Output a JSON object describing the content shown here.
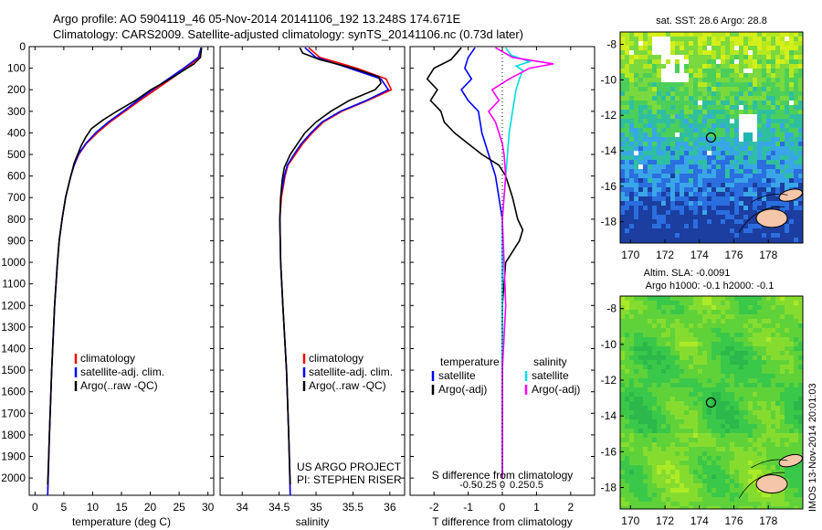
{
  "header": {
    "line1": "Argo profile: AO 5904119_46 05-Nov-2014 20141106_192 13.248S 174.671E",
    "line2": "Climatology: CARS2009. Satellite-adjusted climatology: synTS_20141106.nc (0.73d later)"
  },
  "side_stamp": "IMOS 13-Nov-2014 20:01:03",
  "chart_data": [
    {
      "id": "temperature",
      "type": "line",
      "xlabel": "temperature (deg C)",
      "ylabel": "depth",
      "xlim": [
        -1,
        31
      ],
      "ylim": [
        2080,
        0
      ],
      "xticks": [
        "0",
        "5",
        "10",
        "15",
        "20",
        "25",
        "30"
      ],
      "xtick_values": [
        0,
        5,
        10,
        15,
        20,
        25,
        30
      ],
      "yticks": [
        "0",
        "100",
        "200",
        "300",
        "400",
        "500",
        "600",
        "700",
        "800",
        "900",
        "1000",
        "1100",
        "1200",
        "1300",
        "1400",
        "1500",
        "1600",
        "1700",
        "1800",
        "1900",
        "2000"
      ],
      "ytick_values": [
        0,
        100,
        200,
        300,
        400,
        500,
        600,
        700,
        800,
        900,
        1000,
        1100,
        1200,
        1300,
        1400,
        1500,
        1600,
        1700,
        1800,
        1900,
        2000
      ],
      "legend": [
        "climatology",
        "satellite-adj. clim.",
        "Argo(..raw -QC)"
      ],
      "series": [
        {
          "name": "climatology",
          "color": "#ff0000",
          "depth": [
            5,
            50,
            100,
            150,
            200,
            250,
            300,
            350,
            400,
            450,
            500,
            550,
            600,
            700,
            800,
            900,
            1000,
            1200,
            1500,
            1800,
            2080
          ],
          "values": [
            28.8,
            28.5,
            26.2,
            23.6,
            20.9,
            18.2,
            15.6,
            13.0,
            10.8,
            8.9,
            7.6,
            6.8,
            6.2,
            5.3,
            4.7,
            4.2,
            3.9,
            3.4,
            2.9,
            2.5,
            2.2
          ]
        },
        {
          "name": "satellite-adj. clim.",
          "color": "#0000ff",
          "depth": [
            5,
            50,
            100,
            150,
            200,
            250,
            300,
            350,
            400,
            450,
            500,
            550,
            600,
            700,
            800,
            900,
            1000,
            1200,
            1500,
            1800,
            2080
          ],
          "values": [
            28.8,
            28.3,
            25.8,
            23.1,
            20.4,
            17.8,
            15.3,
            12.7,
            10.5,
            8.8,
            7.5,
            6.8,
            6.2,
            5.3,
            4.7,
            4.2,
            3.9,
            3.4,
            2.9,
            2.5,
            2.2
          ]
        },
        {
          "name": "Argo(..raw -QC)",
          "color": "#000000",
          "depth": [
            5,
            50,
            80,
            120,
            160,
            200,
            250,
            300,
            340,
            380,
            420,
            460,
            500,
            540,
            600,
            700,
            800,
            900,
            1000,
            1200,
            1500,
            1800,
            2030
          ],
          "values": [
            28.9,
            28.7,
            27.6,
            25.2,
            22.8,
            20.1,
            17.4,
            14.2,
            11.8,
            9.8,
            8.8,
            8.0,
            7.4,
            6.8,
            6.2,
            5.3,
            4.7,
            4.2,
            3.9,
            3.4,
            2.9,
            2.5,
            2.2
          ]
        }
      ]
    },
    {
      "id": "salinity",
      "type": "line",
      "xlabel": "salinity",
      "xlim": [
        33.7,
        36.2
      ],
      "ylim": [
        2080,
        0
      ],
      "xticks": [
        "34",
        "34.5",
        "35",
        "35.5",
        "36"
      ],
      "xtick_values": [
        34,
        34.5,
        35,
        35.5,
        36
      ],
      "legend": [
        "climatology",
        "satellite-adj. clim.",
        "Argo(..raw -QC)"
      ],
      "annotation": [
        "US ARGO PROJECT",
        "PI: STEPHEN RISER"
      ],
      "series": [
        {
          "name": "climatology",
          "color": "#ff0000",
          "depth": [
            5,
            50,
            100,
            150,
            200,
            250,
            300,
            350,
            400,
            450,
            500,
            550,
            600,
            700,
            800,
            1000,
            1200,
            1500,
            1800,
            2080
          ],
          "values": [
            34.9,
            35.05,
            35.55,
            35.95,
            36.02,
            35.7,
            35.35,
            35.1,
            34.95,
            34.82,
            34.72,
            34.62,
            34.58,
            34.53,
            34.51,
            34.52,
            34.55,
            34.6,
            34.63,
            34.65
          ]
        },
        {
          "name": "satellite-adj. clim.",
          "color": "#0000ff",
          "depth": [
            5,
            50,
            100,
            150,
            200,
            250,
            300,
            350,
            400,
            450,
            500,
            550,
            600,
            700,
            800,
            1000,
            1200,
            1500,
            1800,
            2080
          ],
          "values": [
            34.85,
            35.0,
            35.45,
            35.88,
            35.98,
            35.68,
            35.33,
            35.08,
            34.93,
            34.8,
            34.7,
            34.61,
            34.57,
            34.52,
            34.51,
            34.52,
            34.55,
            34.6,
            34.63,
            34.65
          ]
        },
        {
          "name": "Argo(..raw -QC)",
          "color": "#000000",
          "depth": [
            5,
            30,
            60,
            100,
            140,
            170,
            200,
            250,
            300,
            350,
            400,
            450,
            500,
            560,
            620,
            700,
            800,
            1000,
            1200,
            1500,
            1800,
            2030
          ],
          "values": [
            34.78,
            34.82,
            35.05,
            35.5,
            35.85,
            35.88,
            35.8,
            35.45,
            35.2,
            35.0,
            34.85,
            34.75,
            34.65,
            34.57,
            34.54,
            34.52,
            34.51,
            34.52,
            34.55,
            34.6,
            34.63,
            34.65
          ]
        }
      ]
    },
    {
      "id": "difference",
      "type": "line",
      "xlabel": "T difference from climatology",
      "xlabel_top": "S difference from climatology",
      "xlim": [
        -2.7,
        2.7
      ],
      "ylim": [
        2080,
        0
      ],
      "xticks": [
        "-2",
        "-1",
        "0",
        "1",
        "2"
      ],
      "xtick_values": [
        -2,
        -1,
        0,
        1,
        2
      ],
      "xticks_top": [
        "-0.5",
        "-0.25",
        "0",
        "0.25",
        "0.5"
      ],
      "xtick_top_values": [
        -0.5,
        -0.25,
        0,
        0.25,
        0.5
      ],
      "legend_left_title": "temperature",
      "legend_right_title": "salinity",
      "legend_left": [
        "satellite",
        "Argo(-adj)"
      ],
      "legend_right": [
        "satellite",
        "Argo(-adj)"
      ],
      "series": [
        {
          "name": "temperature satellite",
          "color": "#0000ff",
          "depth": [
            5,
            50,
            100,
            150,
            200,
            250,
            300,
            400,
            500,
            600,
            700,
            800,
            1000,
            1500,
            2000
          ],
          "values": [
            -0.8,
            -1.0,
            -1.1,
            -0.9,
            -1.2,
            -1.0,
            -0.7,
            -0.6,
            -0.4,
            -0.2,
            -0.1,
            0,
            0,
            0,
            0
          ]
        },
        {
          "name": "temperature Argo(-adj)",
          "color": "#000000",
          "depth": [
            5,
            60,
            100,
            150,
            200,
            250,
            300,
            350,
            400,
            450,
            500,
            550,
            600,
            700,
            800,
            850,
            900,
            1000,
            1200,
            1500,
            2000
          ],
          "values": [
            -1.2,
            -1.5,
            -2.0,
            -2.2,
            -1.9,
            -2.1,
            -1.8,
            -1.7,
            -1.4,
            -1.0,
            -0.6,
            -0.1,
            0.1,
            0.3,
            0.45,
            0.6,
            0.5,
            0.1,
            0,
            0,
            0
          ]
        },
        {
          "name": "salinity satellite",
          "color": "#00dddd",
          "depth": [
            5,
            40,
            70,
            90,
            110,
            150,
            200,
            300,
            400,
            500,
            600,
            800,
            1000,
            1500,
            2000
          ],
          "values": [
            0.1,
            0.25,
            0.8,
            0.4,
            0.6,
            0.5,
            0.4,
            0.3,
            0.2,
            0.15,
            0.1,
            0,
            0,
            0,
            0
          ]
        },
        {
          "name": "salinity Argo(-adj)",
          "color": "#ff00ff",
          "depth": [
            5,
            50,
            80,
            100,
            150,
            200,
            250,
            300,
            350,
            400,
            450,
            500,
            600,
            800,
            1000,
            1200,
            1500,
            2000
          ],
          "values": [
            -0.2,
            0.3,
            1.5,
            0.8,
            0.2,
            -0.3,
            -0.1,
            -0.4,
            -0.2,
            -0.1,
            0,
            0.05,
            0.1,
            0,
            0.05,
            0.1,
            0,
            0
          ]
        }
      ]
    },
    {
      "id": "sst_map",
      "type": "heatmap",
      "title": "sat. SST: 28.6  Argo: 28.8",
      "xlim": [
        169.4,
        180.0
      ],
      "ylim": [
        -19.2,
        -7.3
      ],
      "xticks": [
        "170",
        "172",
        "174",
        "176",
        "178"
      ],
      "xtick_values": [
        170,
        172,
        174,
        176,
        178
      ],
      "yticks": [
        "-8",
        "-10",
        "-12",
        "-14",
        "-16",
        "-18"
      ],
      "ytick_values": [
        -8,
        -10,
        -12,
        -14,
        -16,
        -18
      ],
      "argo_position": [
        174.671,
        -13.248
      ]
    },
    {
      "id": "sla_map",
      "type": "heatmap",
      "title": "Altim. SLA: -0.0091",
      "subtitle": "Argo h1000: -0.1  h2000: -0.1",
      "xlim": [
        169.4,
        180.0
      ],
      "ylim": [
        -19.2,
        -7.3
      ],
      "xticks": [
        "170",
        "172",
        "174",
        "176",
        "178"
      ],
      "xtick_values": [
        170,
        172,
        174,
        176,
        178
      ],
      "yticks": [
        "-8",
        "-10",
        "-12",
        "-14",
        "-16",
        "-18"
      ],
      "ytick_values": [
        -8,
        -10,
        -12,
        -14,
        -16,
        -18
      ],
      "argo_position": [
        174.671,
        -13.248
      ]
    }
  ]
}
